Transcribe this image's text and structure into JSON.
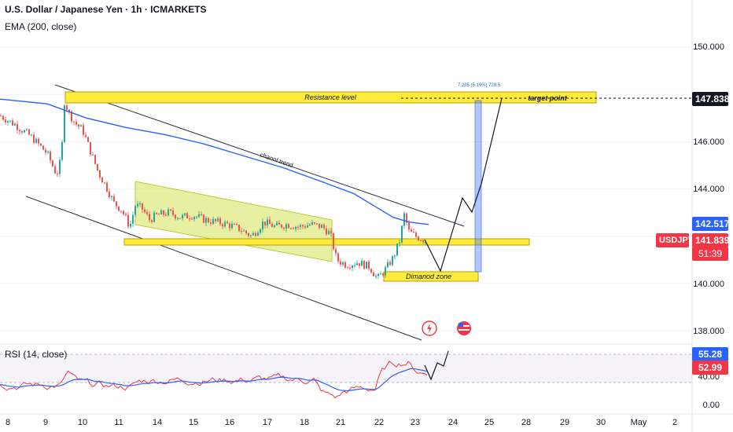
{
  "header": {
    "title": "U.S. Dollar / Japanese Yen · 1h · ICMARKETS",
    "indicator": "EMA (200, close)"
  },
  "price_axis": {
    "ticks": [
      "150.000",
      "146.000",
      "144.000",
      "140.000",
      "138.000"
    ],
    "target_label": "147.838",
    "ema_label": "142.517",
    "symbol_label": "USDJPY",
    "price_label": "141.839",
    "countdown_label": "51:39"
  },
  "rsi_axis": {
    "ticks": [
      "40.00",
      "0.00"
    ],
    "high_label": "55.28",
    "low_label": "52.99"
  },
  "rsi_label": "RSI (14, close)",
  "time_axis": [
    "8",
    "9",
    "10",
    "11",
    "14",
    "15",
    "16",
    "17",
    "18",
    "21",
    "22",
    "23",
    "24",
    "25",
    "28",
    "29",
    "30",
    "May",
    "2"
  ],
  "annotations": {
    "resistance": "Resistance level",
    "target": "target point",
    "channel": "channl trend",
    "diamond": "Dimanod zone",
    "measure": "7.285 (5.19%) 728.5"
  },
  "colors": {
    "up": "#26a69a",
    "down": "#ef5350",
    "ema": "#2962ff",
    "zone": "#ffeb3b",
    "channel_fill": "#d4e157",
    "rsi_line": "#f23645",
    "rsi_ma": "#2962ff"
  },
  "chart_data": {
    "type": "candlestick",
    "y_range": [
      137,
      151.5
    ],
    "rsi_range": [
      0,
      100
    ],
    "levels": {
      "target": 147.838,
      "ema_current": 142.517,
      "price_current": 141.839
    },
    "resistance_zone": [
      147.7,
      148.25
    ],
    "support_zone": [
      141.65,
      141.95
    ],
    "diamond_zone": [
      140.2,
      140.6
    ],
    "rsi": {
      "current": 55.28,
      "signal": 52.99
    }
  }
}
